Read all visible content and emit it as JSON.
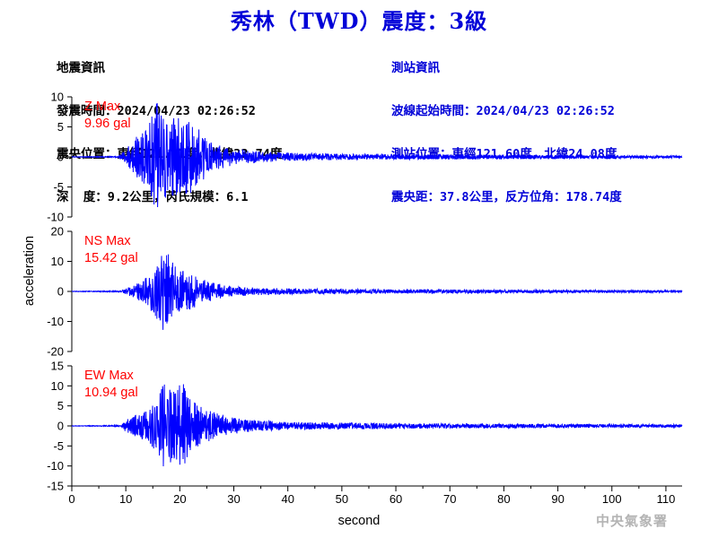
{
  "header": {
    "title": "秀林（TWD）震度：3級"
  },
  "earthquake_info": {
    "heading": "地震資訊",
    "time": "發震時間：2024/04/23 02:26:52",
    "epicenter": "震央位置：東經121.61度，北緯23.74度",
    "depth_magnitude": "深  度：9.2公里，芮氏規模：6.1"
  },
  "station_info": {
    "heading": "測站資訊",
    "wave_start": "波線起始時間：2024/04/23 02:26:52",
    "location": "測站位置：東經121.60度，北緯24.08度",
    "distance": "震央距：37.8公里，反方位角：178.74度"
  },
  "footer": {
    "agency": "中央氣象署"
  },
  "colors": {
    "trace": "#0000ff",
    "max_label": "#ff0000",
    "title": "#0000d8",
    "station_text": "#0000d8"
  },
  "chart_data": {
    "type": "line",
    "xlabel": "second",
    "ylabel": "acceleration",
    "xlim": [
      0,
      113
    ],
    "xticks": [
      0,
      10,
      20,
      30,
      40,
      50,
      60,
      70,
      80,
      90,
      100,
      110
    ],
    "grid": false,
    "panels": [
      {
        "name": "Z",
        "label": "Z Max",
        "max_text": "9.96 gal",
        "max_value": 9.96,
        "ylim": [
          -10,
          10
        ],
        "yticks": [
          -10,
          -5,
          0,
          5,
          10
        ],
        "envelope": {
          "x": [
            0,
            8.5,
            10,
            12,
            14,
            16,
            17,
            19,
            21,
            23,
            26,
            30,
            35,
            40,
            50,
            60,
            70,
            80,
            90,
            100,
            113
          ],
          "y": [
            0.05,
            0.1,
            1.2,
            3.5,
            5.0,
            9.96,
            7.5,
            6.5,
            7.0,
            5.0,
            2.6,
            1.3,
            0.9,
            0.7,
            0.5,
            0.45,
            0.4,
            0.35,
            0.3,
            0.25,
            0.2
          ]
        }
      },
      {
        "name": "NS",
        "label": "NS Max",
        "max_text": "15.42 gal",
        "max_value": 15.42,
        "ylim": [
          -20,
          20
        ],
        "yticks": [
          -20,
          -10,
          0,
          10,
          20
        ],
        "envelope": {
          "x": [
            0,
            9,
            10,
            12,
            14,
            16,
            17,
            18,
            20,
            22,
            25,
            30,
            35,
            40,
            50,
            60,
            70,
            80,
            90,
            100,
            113
          ],
          "y": [
            0.1,
            0.2,
            1.0,
            2.5,
            5.0,
            10.0,
            15.42,
            12.0,
            8.0,
            6.0,
            3.5,
            1.6,
            1.2,
            1.0,
            0.8,
            0.7,
            0.65,
            0.6,
            0.5,
            0.45,
            0.4
          ]
        }
      },
      {
        "name": "EW",
        "label": "EW Max",
        "max_text": "10.94 gal",
        "max_value": 10.94,
        "ylim": [
          -15,
          15
        ],
        "yticks": [
          -15,
          -10,
          -5,
          0,
          5,
          10,
          15
        ],
        "envelope": {
          "x": [
            0,
            9,
            10,
            12,
            14,
            16,
            17,
            19,
            20.5,
            22,
            25,
            30,
            35,
            40,
            50,
            60,
            70,
            80,
            90,
            100,
            113
          ],
          "y": [
            0.05,
            0.2,
            1.5,
            2.8,
            4.0,
            7.5,
            10.5,
            9.0,
            10.94,
            6.5,
            4.0,
            2.0,
            1.3,
            1.0,
            0.8,
            0.7,
            0.6,
            0.55,
            0.5,
            0.45,
            0.4
          ]
        }
      }
    ]
  }
}
